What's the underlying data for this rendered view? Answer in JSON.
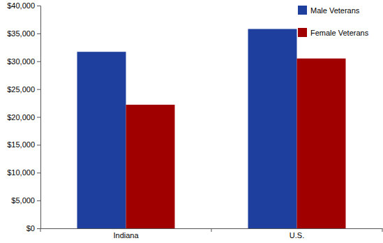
{
  "chart_data": {
    "type": "bar",
    "categories": [
      "Indiana",
      "U.S."
    ],
    "series": [
      {
        "name": "Male Veterans",
        "color": "#1f3f9f",
        "values": [
          31700,
          35800
        ]
      },
      {
        "name": "Female Veterans",
        "color": "#a00000",
        "values": [
          22200,
          30500
        ]
      }
    ],
    "ylim": [
      0,
      40000
    ],
    "yticks": [
      {
        "value": 0,
        "label": "$0"
      },
      {
        "value": 5000,
        "label": "$5,000"
      },
      {
        "value": 10000,
        "label": "$10,000"
      },
      {
        "value": 15000,
        "label": "$15,000"
      },
      {
        "value": 20000,
        "label": "$20,000"
      },
      {
        "value": 25000,
        "label": "$25,000"
      },
      {
        "value": 30000,
        "label": "$30,000"
      },
      {
        "value": 35000,
        "label": "$35,000"
      },
      {
        "value": 40000,
        "label": "$40,000"
      }
    ],
    "grid": false,
    "legend": "upper right"
  }
}
